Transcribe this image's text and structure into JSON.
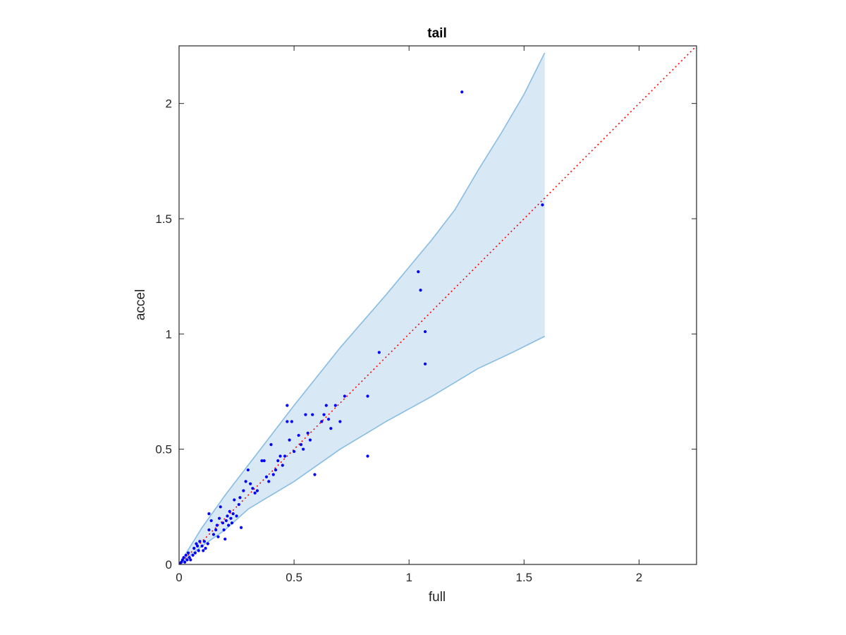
{
  "chart_data": {
    "type": "scatter",
    "title": "tail",
    "xlabel": "full",
    "ylabel": "accel",
    "xlim": [
      0,
      2.25
    ],
    "ylim": [
      0,
      2.25
    ],
    "xticks": [
      "0",
      "0.5",
      "1",
      "1.5",
      "2"
    ],
    "yticks": [
      "0",
      "0.5",
      "1",
      "1.5",
      "2"
    ],
    "grid": false,
    "box": true,
    "colors": {
      "points": "#0000ff",
      "reference_line": "#ff0000",
      "band_fill": "#d8e8f5",
      "band_edge": "#87bde3",
      "axes": "#262626"
    },
    "reference_line": {
      "x": [
        0,
        2.25
      ],
      "y": [
        0,
        2.25
      ],
      "style": "dotted"
    },
    "band": {
      "upper": [
        [
          0,
          0
        ],
        [
          0.05,
          0.08
        ],
        [
          0.1,
          0.16
        ],
        [
          0.2,
          0.3
        ],
        [
          0.3,
          0.43
        ],
        [
          0.5,
          0.69
        ],
        [
          0.7,
          0.94
        ],
        [
          0.9,
          1.17
        ],
        [
          1.1,
          1.41
        ],
        [
          1.2,
          1.54
        ],
        [
          1.3,
          1.71
        ],
        [
          1.4,
          1.87
        ],
        [
          1.5,
          2.04
        ],
        [
          1.59,
          2.22
        ]
      ],
      "lower": [
        [
          0,
          0
        ],
        [
          0.05,
          0.04
        ],
        [
          0.1,
          0.08
        ],
        [
          0.2,
          0.15
        ],
        [
          0.3,
          0.24
        ],
        [
          0.5,
          0.36
        ],
        [
          0.7,
          0.5
        ],
        [
          0.9,
          0.62
        ],
        [
          1.1,
          0.73
        ],
        [
          1.3,
          0.85
        ],
        [
          1.45,
          0.92
        ],
        [
          1.59,
          0.99
        ]
      ]
    },
    "points": [
      [
        0.005,
        0.005
      ],
      [
        0.01,
        0.01
      ],
      [
        0.015,
        0.02
      ],
      [
        0.02,
        0.03
      ],
      [
        0.025,
        0.01
      ],
      [
        0.03,
        0.04
      ],
      [
        0.035,
        0.02
      ],
      [
        0.04,
        0.05
      ],
      [
        0.045,
        0.03
      ],
      [
        0.05,
        0.02
      ],
      [
        0.06,
        0.04
      ],
      [
        0.065,
        0.07
      ],
      [
        0.07,
        0.05
      ],
      [
        0.075,
        0.09
      ],
      [
        0.08,
        0.08
      ],
      [
        0.085,
        0.06
      ],
      [
        0.09,
        0.1
      ],
      [
        0.1,
        0.08
      ],
      [
        0.105,
        0.06
      ],
      [
        0.11,
        0.1
      ],
      [
        0.115,
        0.07
      ],
      [
        0.125,
        0.09
      ],
      [
        0.13,
        0.15
      ],
      [
        0.13,
        0.22
      ],
      [
        0.14,
        0.19
      ],
      [
        0.15,
        0.13
      ],
      [
        0.16,
        0.15
      ],
      [
        0.165,
        0.17
      ],
      [
        0.17,
        0.12
      ],
      [
        0.175,
        0.2
      ],
      [
        0.18,
        0.25
      ],
      [
        0.19,
        0.18
      ],
      [
        0.195,
        0.15
      ],
      [
        0.2,
        0.11
      ],
      [
        0.205,
        0.19
      ],
      [
        0.21,
        0.21
      ],
      [
        0.215,
        0.17
      ],
      [
        0.22,
        0.23
      ],
      [
        0.225,
        0.2
      ],
      [
        0.23,
        0.18
      ],
      [
        0.235,
        0.22
      ],
      [
        0.24,
        0.28
      ],
      [
        0.25,
        0.21
      ],
      [
        0.26,
        0.26
      ],
      [
        0.265,
        0.29
      ],
      [
        0.27,
        0.16
      ],
      [
        0.28,
        0.32
      ],
      [
        0.29,
        0.36
      ],
      [
        0.3,
        0.41
      ],
      [
        0.31,
        0.35
      ],
      [
        0.32,
        0.33
      ],
      [
        0.33,
        0.31
      ],
      [
        0.34,
        0.32
      ],
      [
        0.36,
        0.45
      ],
      [
        0.37,
        0.45
      ],
      [
        0.38,
        0.38
      ],
      [
        0.39,
        0.36
      ],
      [
        0.4,
        0.52
      ],
      [
        0.41,
        0.39
      ],
      [
        0.42,
        0.41
      ],
      [
        0.43,
        0.45
      ],
      [
        0.44,
        0.47
      ],
      [
        0.45,
        0.43
      ],
      [
        0.46,
        0.47
      ],
      [
        0.47,
        0.62
      ],
      [
        0.47,
        0.69
      ],
      [
        0.48,
        0.54
      ],
      [
        0.49,
        0.62
      ],
      [
        0.5,
        0.49
      ],
      [
        0.52,
        0.56
      ],
      [
        0.53,
        0.52
      ],
      [
        0.54,
        0.5
      ],
      [
        0.55,
        0.65
      ],
      [
        0.56,
        0.57
      ],
      [
        0.57,
        0.54
      ],
      [
        0.58,
        0.65
      ],
      [
        0.59,
        0.39
      ],
      [
        0.62,
        0.62
      ],
      [
        0.63,
        0.65
      ],
      [
        0.64,
        0.69
      ],
      [
        0.65,
        0.63
      ],
      [
        0.66,
        0.59
      ],
      [
        0.68,
        0.69
      ],
      [
        0.7,
        0.62
      ],
      [
        0.72,
        0.73
      ],
      [
        0.82,
        0.73
      ],
      [
        0.82,
        0.47
      ],
      [
        0.87,
        0.92
      ],
      [
        1.04,
        1.27
      ],
      [
        1.05,
        1.19
      ],
      [
        1.07,
        1.01
      ],
      [
        1.07,
        0.87
      ],
      [
        1.23,
        2.05
      ],
      [
        1.58,
        1.56
      ]
    ]
  }
}
